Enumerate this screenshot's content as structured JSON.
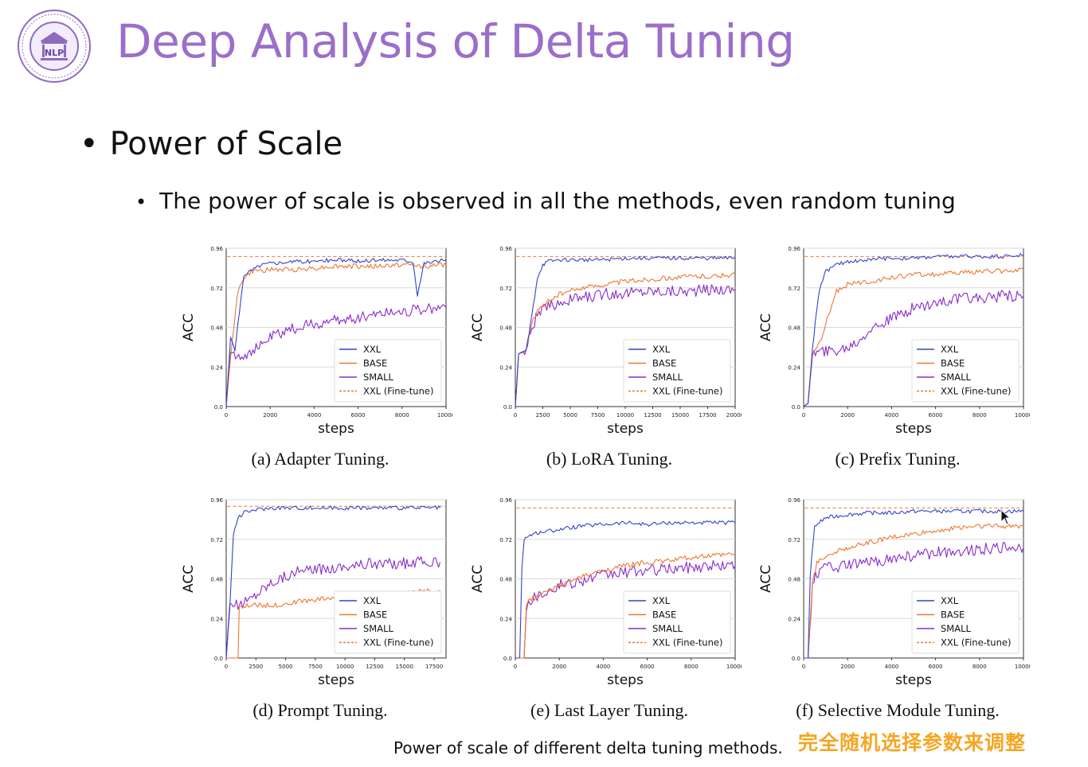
{
  "header": {
    "logo_text": "NLP",
    "title": "Deep Analysis of Delta Tuning"
  },
  "content": {
    "bullet_1": "Power of Scale",
    "bullet_2": "The power of scale is observed in all the methods, even random tuning",
    "figure_caption": "Power of scale of different delta tuning methods.",
    "overlay_note": "完全随机选择参数来调整"
  },
  "colors": {
    "title": "#9B6FC9",
    "XXL": "#3344CC",
    "BASE": "#EE7733",
    "SMALL": "#8A2BCC",
    "XXL (Fine-tune)": "#EE7733",
    "overlay_note": "#F5A623"
  },
  "legend_labels": [
    "XXL",
    "BASE",
    "SMALL",
    "XXL (Fine-tune)"
  ],
  "chart_data": [
    {
      "type": "line",
      "caption": "(a) Adapter Tuning.",
      "xlabel": "steps",
      "ylabel": "ACC",
      "xlim": [
        0,
        10000
      ],
      "ylim": [
        0,
        0.96
      ],
      "xticks": [
        0,
        2000,
        4000,
        6000,
        8000,
        10000
      ],
      "yticks": [
        0.0,
        0.24,
        0.48,
        0.72,
        0.96
      ],
      "grid": "y",
      "legend": "lower-right",
      "finetune": 0.91,
      "series": [
        {
          "name": "XXL",
          "x": [
            0,
            200,
            400,
            800,
            1200,
            1600,
            2000,
            3000,
            4000,
            5000,
            6000,
            7000,
            8000,
            8500,
            8700,
            9000,
            10000
          ],
          "y": [
            0.0,
            0.42,
            0.34,
            0.8,
            0.83,
            0.86,
            0.87,
            0.88,
            0.88,
            0.89,
            0.88,
            0.89,
            0.89,
            0.88,
            0.68,
            0.87,
            0.89
          ]
        },
        {
          "name": "BASE",
          "x": [
            0,
            200,
            500,
            800,
            1200,
            2000,
            3000,
            4000,
            5000,
            6000,
            7000,
            8000,
            9000,
            10000
          ],
          "y": [
            0.0,
            0.3,
            0.68,
            0.78,
            0.82,
            0.83,
            0.83,
            0.84,
            0.85,
            0.85,
            0.85,
            0.86,
            0.85,
            0.86
          ]
        },
        {
          "name": "SMALL",
          "x": [
            0,
            200,
            500,
            1000,
            1500,
            2000,
            3000,
            4000,
            5000,
            6000,
            7000,
            8000,
            9000,
            10000
          ],
          "y": [
            0.0,
            0.33,
            0.31,
            0.32,
            0.36,
            0.42,
            0.47,
            0.5,
            0.52,
            0.54,
            0.57,
            0.58,
            0.59,
            0.6
          ]
        }
      ]
    },
    {
      "type": "line",
      "caption": "(b) LoRA Tuning.",
      "xlabel": "steps",
      "ylabel": "ACC",
      "xlim": [
        0,
        20000
      ],
      "ylim": [
        0,
        0.96
      ],
      "xticks": [
        0,
        2500,
        5000,
        7500,
        10000,
        12500,
        15000,
        17500,
        20000
      ],
      "yticks": [
        0.0,
        0.24,
        0.48,
        0.72,
        0.96
      ],
      "grid": "y",
      "legend": "lower-right",
      "finetune": 0.91,
      "series": [
        {
          "name": "XXL",
          "x": [
            0,
            300,
            1000,
            1500,
            2000,
            2500,
            3000,
            4000,
            6000,
            8000,
            10000,
            12000,
            14000,
            16000,
            18000,
            20000
          ],
          "y": [
            0.0,
            0.32,
            0.34,
            0.55,
            0.78,
            0.86,
            0.88,
            0.89,
            0.89,
            0.89,
            0.9,
            0.9,
            0.9,
            0.9,
            0.9,
            0.9
          ]
        },
        {
          "name": "BASE",
          "x": [
            0,
            300,
            1000,
            1500,
            2000,
            3000,
            4000,
            6000,
            8000,
            10000,
            12000,
            14000,
            16000,
            18000,
            20000
          ],
          "y": [
            0.0,
            0.32,
            0.35,
            0.5,
            0.58,
            0.64,
            0.68,
            0.72,
            0.74,
            0.76,
            0.77,
            0.78,
            0.79,
            0.79,
            0.8
          ]
        },
        {
          "name": "SMALL",
          "x": [
            0,
            300,
            1000,
            1500,
            2000,
            3000,
            4000,
            6000,
            8000,
            10000,
            12000,
            14000,
            16000,
            18000,
            20000
          ],
          "y": [
            0.0,
            0.32,
            0.34,
            0.48,
            0.56,
            0.6,
            0.63,
            0.66,
            0.68,
            0.69,
            0.7,
            0.7,
            0.7,
            0.71,
            0.71
          ]
        }
      ]
    },
    {
      "type": "line",
      "caption": "(c) Prefix Tuning.",
      "xlabel": "steps",
      "ylabel": "ACC",
      "xlim": [
        0,
        10000
      ],
      "ylim": [
        0,
        0.96
      ],
      "xticks": [
        0,
        2000,
        4000,
        6000,
        8000,
        10000
      ],
      "yticks": [
        0.0,
        0.24,
        0.48,
        0.72,
        0.96
      ],
      "grid": "y",
      "legend": "lower-right",
      "finetune": 0.91,
      "series": [
        {
          "name": "XXL",
          "x": [
            0,
            200,
            400,
            600,
            800,
            1000,
            1500,
            2000,
            3000,
            4000,
            5000,
            6000,
            7000,
            8000,
            9000,
            10000
          ],
          "y": [
            0.0,
            0.02,
            0.35,
            0.6,
            0.75,
            0.82,
            0.86,
            0.88,
            0.89,
            0.9,
            0.9,
            0.91,
            0.91,
            0.91,
            0.91,
            0.92
          ]
        },
        {
          "name": "BASE",
          "x": [
            0,
            200,
            400,
            800,
            1000,
            1500,
            2000,
            3000,
            4000,
            5000,
            6000,
            7000,
            8000,
            9000,
            10000
          ],
          "y": [
            0.0,
            0.02,
            0.32,
            0.4,
            0.5,
            0.7,
            0.74,
            0.76,
            0.78,
            0.8,
            0.8,
            0.81,
            0.82,
            0.82,
            0.83
          ]
        },
        {
          "name": "SMALL",
          "x": [
            0,
            200,
            400,
            800,
            1500,
            2000,
            2500,
            3000,
            4000,
            5000,
            6000,
            7000,
            8000,
            9000,
            10000
          ],
          "y": [
            0.0,
            0.02,
            0.32,
            0.33,
            0.34,
            0.36,
            0.4,
            0.47,
            0.53,
            0.6,
            0.63,
            0.65,
            0.66,
            0.67,
            0.67
          ]
        }
      ]
    },
    {
      "type": "line",
      "caption": "(d) Prompt Tuning.",
      "xlabel": "steps",
      "ylabel": "ACC",
      "xlim": [
        0,
        18500
      ],
      "ylim": [
        0,
        0.96
      ],
      "xticks": [
        0,
        2500,
        5000,
        7500,
        10000,
        12500,
        15000,
        17500
      ],
      "yticks": [
        0.0,
        0.24,
        0.48,
        0.72,
        0.96
      ],
      "grid": "y",
      "legend": "lower-right",
      "finetune": 0.92,
      "series": [
        {
          "name": "XXL",
          "x": [
            0,
            300,
            600,
            1000,
            1500,
            2500,
            4000,
            6000,
            8000,
            10000,
            12000,
            14000,
            16000,
            18000
          ],
          "y": [
            0.0,
            0.3,
            0.75,
            0.85,
            0.88,
            0.9,
            0.91,
            0.91,
            0.91,
            0.91,
            0.91,
            0.91,
            0.91,
            0.91
          ]
        },
        {
          "name": "BASE",
          "x": [
            0,
            1000,
            1100,
            2000,
            4000,
            6000,
            8000,
            10000,
            12000,
            14000,
            16000,
            18000
          ],
          "y": [
            0.0,
            0.0,
            0.31,
            0.32,
            0.32,
            0.34,
            0.36,
            0.37,
            0.38,
            0.39,
            0.4,
            0.41
          ]
        },
        {
          "name": "SMALL",
          "x": [
            0,
            300,
            1000,
            2000,
            3000,
            4000,
            5000,
            6000,
            8000,
            10000,
            12000,
            14000,
            16000,
            18000
          ],
          "y": [
            0.0,
            0.33,
            0.32,
            0.36,
            0.42,
            0.47,
            0.5,
            0.52,
            0.54,
            0.56,
            0.57,
            0.57,
            0.58,
            0.58
          ]
        }
      ]
    },
    {
      "type": "line",
      "caption": "(e) Last Layer Tuning.",
      "xlabel": "steps",
      "ylabel": "ACC",
      "xlim": [
        0,
        10000
      ],
      "ylim": [
        0,
        0.96
      ],
      "xticks": [
        0,
        2000,
        4000,
        6000,
        8000,
        10000
      ],
      "yticks": [
        0.0,
        0.24,
        0.48,
        0.72,
        0.96
      ],
      "grid": "y",
      "legend": "lower-right",
      "finetune": 0.91,
      "series": [
        {
          "name": "XXL",
          "x": [
            0,
            200,
            300,
            400,
            600,
            1000,
            2000,
            3000,
            4000,
            5000,
            6000,
            7000,
            8000,
            9000,
            10000
          ],
          "y": [
            0.0,
            0.0,
            0.55,
            0.72,
            0.74,
            0.76,
            0.78,
            0.8,
            0.81,
            0.82,
            0.81,
            0.82,
            0.82,
            0.82,
            0.82
          ]
        },
        {
          "name": "BASE",
          "x": [
            0,
            400,
            500,
            600,
            1000,
            2000,
            3000,
            4000,
            5000,
            6000,
            7000,
            8000,
            9000,
            10000
          ],
          "y": [
            0.0,
            0.0,
            0.31,
            0.35,
            0.37,
            0.44,
            0.49,
            0.53,
            0.56,
            0.58,
            0.59,
            0.61,
            0.62,
            0.63
          ]
        },
        {
          "name": "SMALL",
          "x": [
            0,
            400,
            500,
            600,
            1000,
            2000,
            3000,
            4000,
            5000,
            6000,
            7000,
            8000,
            9000,
            10000
          ],
          "y": [
            0.0,
            0.0,
            0.31,
            0.35,
            0.38,
            0.44,
            0.47,
            0.5,
            0.52,
            0.53,
            0.54,
            0.55,
            0.56,
            0.56
          ]
        }
      ]
    },
    {
      "type": "line",
      "caption": "(f) Selective Module Tuning.",
      "xlabel": "steps",
      "ylabel": "ACC",
      "xlim": [
        0,
        10000
      ],
      "ylim": [
        0,
        0.96
      ],
      "xticks": [
        0,
        2000,
        4000,
        6000,
        8000,
        10000
      ],
      "yticks": [
        0.0,
        0.24,
        0.48,
        0.72,
        0.96
      ],
      "grid": "y",
      "legend": "lower-right",
      "finetune": 0.91,
      "series": [
        {
          "name": "XXL",
          "x": [
            0,
            200,
            300,
            500,
            1000,
            2000,
            3000,
            4000,
            5000,
            6000,
            7000,
            8000,
            9000,
            10000
          ],
          "y": [
            0.0,
            0.0,
            0.5,
            0.8,
            0.85,
            0.87,
            0.88,
            0.88,
            0.89,
            0.89,
            0.89,
            0.89,
            0.89,
            0.89
          ]
        },
        {
          "name": "BASE",
          "x": [
            0,
            200,
            400,
            600,
            1000,
            2000,
            3000,
            4000,
            5000,
            6000,
            7000,
            8000,
            9000,
            10000
          ],
          "y": [
            0.0,
            0.0,
            0.45,
            0.58,
            0.62,
            0.67,
            0.7,
            0.73,
            0.75,
            0.77,
            0.79,
            0.8,
            0.8,
            0.8
          ]
        },
        {
          "name": "SMALL",
          "x": [
            0,
            200,
            400,
            600,
            1000,
            2000,
            3000,
            4000,
            5000,
            6000,
            7000,
            8000,
            9000,
            10000
          ],
          "y": [
            0.0,
            0.0,
            0.45,
            0.52,
            0.55,
            0.56,
            0.58,
            0.6,
            0.62,
            0.64,
            0.65,
            0.66,
            0.67,
            0.67
          ]
        }
      ]
    }
  ]
}
